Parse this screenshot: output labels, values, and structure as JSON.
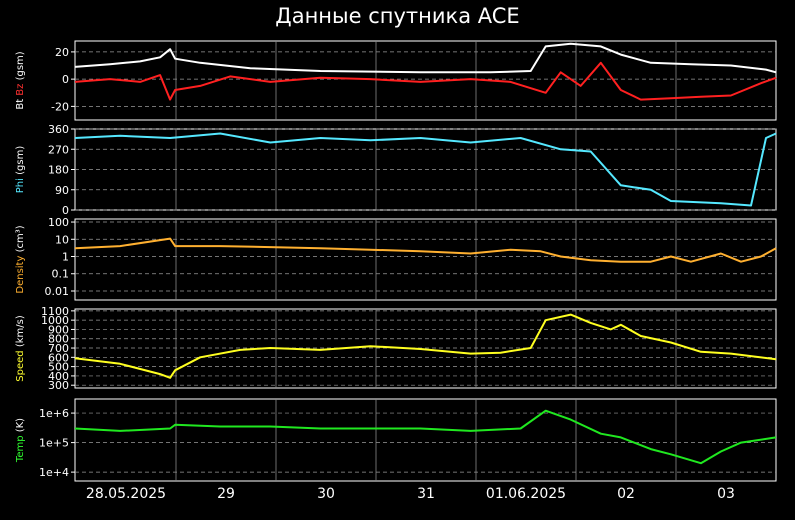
{
  "title": "Данные спутника ACE",
  "chart_data": {
    "type": "line",
    "x_ticks": [
      "28.05.2025",
      "29",
      "30",
      "31",
      "01.06.2025",
      "02",
      "03"
    ],
    "x_range_days": [
      -0.95,
      6.05
    ],
    "grid": true,
    "panels": [
      {
        "id": "mag",
        "ylabel_parts": [
          {
            "text": "Bt ",
            "color": "#ffffff"
          },
          {
            "text": "Bz",
            "color": "#ff3030"
          },
          {
            "text": " (gsm)",
            "color": "#ffffff"
          }
        ],
        "yticks": [
          "20",
          "0",
          "-20"
        ],
        "tick_values": [
          20,
          0,
          -20
        ],
        "ylim": [
          -30,
          28
        ],
        "scale": "linear",
        "series": [
          {
            "name": "Bt",
            "color": "#ffffff",
            "points": [
              [
                -0.95,
                9
              ],
              [
                -0.6,
                11
              ],
              [
                -0.3,
                13
              ],
              [
                -0.1,
                16
              ],
              [
                0.0,
                22
              ],
              [
                0.05,
                15
              ],
              [
                0.3,
                12
              ],
              [
                0.8,
                8
              ],
              [
                1.5,
                6
              ],
              [
                2.5,
                5
              ],
              [
                3.2,
                5
              ],
              [
                3.6,
                6
              ],
              [
                3.75,
                24
              ],
              [
                4.0,
                26
              ],
              [
                4.3,
                24
              ],
              [
                4.5,
                18
              ],
              [
                4.8,
                12
              ],
              [
                5.2,
                11
              ],
              [
                5.6,
                10
              ],
              [
                5.95,
                7
              ],
              [
                6.05,
                5
              ]
            ]
          },
          {
            "name": "Bz",
            "color": "#ff2020",
            "points": [
              [
                -0.95,
                -2
              ],
              [
                -0.6,
                0
              ],
              [
                -0.3,
                -2
              ],
              [
                -0.1,
                3
              ],
              [
                0.0,
                -15
              ],
              [
                0.05,
                -8
              ],
              [
                0.3,
                -5
              ],
              [
                0.6,
                2
              ],
              [
                1.0,
                -2
              ],
              [
                1.5,
                1
              ],
              [
                2.0,
                0
              ],
              [
                2.5,
                -2
              ],
              [
                3.0,
                0
              ],
              [
                3.4,
                -2
              ],
              [
                3.75,
                -10
              ],
              [
                3.9,
                5
              ],
              [
                4.1,
                -5
              ],
              [
                4.3,
                12
              ],
              [
                4.5,
                -8
              ],
              [
                4.7,
                -15
              ],
              [
                5.0,
                -14
              ],
              [
                5.3,
                -13
              ],
              [
                5.6,
                -12
              ],
              [
                5.9,
                -3
              ],
              [
                6.05,
                1
              ]
            ]
          }
        ]
      },
      {
        "id": "phi",
        "ylabel_parts": [
          {
            "text": "Phi",
            "color": "#55e8ff"
          },
          {
            "text": " (gsm)",
            "color": "#ffffff"
          }
        ],
        "yticks": [
          "360",
          "270",
          "180",
          "90",
          "0"
        ],
        "tick_values": [
          360,
          270,
          180,
          90,
          0
        ],
        "ylim": [
          0,
          360
        ],
        "scale": "linear",
        "series": [
          {
            "name": "Phi",
            "color": "#55e8ff",
            "points": [
              [
                -0.95,
                320
              ],
              [
                -0.5,
                330
              ],
              [
                0.0,
                320
              ],
              [
                0.5,
                340
              ],
              [
                1.0,
                300
              ],
              [
                1.5,
                320
              ],
              [
                2.0,
                310
              ],
              [
                2.5,
                320
              ],
              [
                3.0,
                300
              ],
              [
                3.5,
                320
              ],
              [
                3.9,
                270
              ],
              [
                4.2,
                260
              ],
              [
                4.5,
                110
              ],
              [
                4.8,
                90
              ],
              [
                5.0,
                40
              ],
              [
                5.5,
                30
              ],
              [
                5.8,
                20
              ],
              [
                5.95,
                320
              ],
              [
                6.05,
                340
              ]
            ]
          }
        ]
      },
      {
        "id": "density",
        "ylabel_parts": [
          {
            "text": "Density",
            "color": "#ffb030"
          },
          {
            "text": " (cm³)",
            "color": "#ffffff"
          }
        ],
        "yticks": [
          "100",
          "10",
          "1",
          "0.1",
          "0.01"
        ],
        "tick_values": [
          100,
          10,
          1,
          0.1,
          0.01
        ],
        "ylim": [
          0.003,
          150
        ],
        "scale": "log",
        "series": [
          {
            "name": "Density",
            "color": "#ffb030",
            "points": [
              [
                -0.95,
                3
              ],
              [
                -0.5,
                4
              ],
              [
                0.0,
                11
              ],
              [
                0.05,
                4
              ],
              [
                0.5,
                4
              ],
              [
                1.0,
                3.5
              ],
              [
                1.5,
                3
              ],
              [
                2.0,
                2.5
              ],
              [
                2.5,
                2
              ],
              [
                3.0,
                1.5
              ],
              [
                3.4,
                2.5
              ],
              [
                3.7,
                2
              ],
              [
                3.9,
                1
              ],
              [
                4.2,
                0.6
              ],
              [
                4.5,
                0.5
              ],
              [
                4.8,
                0.5
              ],
              [
                5.0,
                1
              ],
              [
                5.2,
                0.5
              ],
              [
                5.5,
                1.5
              ],
              [
                5.7,
                0.5
              ],
              [
                5.9,
                1
              ],
              [
                6.05,
                3
              ]
            ]
          }
        ]
      },
      {
        "id": "speed",
        "ylabel_parts": [
          {
            "text": "Speed",
            "color": "#ffff30"
          },
          {
            "text": " (km/s)",
            "color": "#ffffff"
          }
        ],
        "yticks": [
          "1100",
          "1000",
          "900",
          "800",
          "700",
          "600",
          "500",
          "400",
          "300"
        ],
        "tick_values": [
          1100,
          1000,
          900,
          800,
          700,
          600,
          500,
          400,
          300
        ],
        "ylim": [
          270,
          1120
        ],
        "scale": "linear",
        "series": [
          {
            "name": "Speed",
            "color": "#ffff20",
            "points": [
              [
                -0.95,
                590
              ],
              [
                -0.5,
                530
              ],
              [
                -0.1,
                420
              ],
              [
                0.0,
                380
              ],
              [
                0.05,
                460
              ],
              [
                0.3,
                600
              ],
              [
                0.7,
                680
              ],
              [
                1.0,
                700
              ],
              [
                1.5,
                680
              ],
              [
                2.0,
                720
              ],
              [
                2.5,
                690
              ],
              [
                3.0,
                640
              ],
              [
                3.3,
                650
              ],
              [
                3.6,
                700
              ],
              [
                3.75,
                1000
              ],
              [
                4.0,
                1060
              ],
              [
                4.2,
                970
              ],
              [
                4.4,
                900
              ],
              [
                4.5,
                950
              ],
              [
                4.7,
                830
              ],
              [
                5.0,
                760
              ],
              [
                5.3,
                660
              ],
              [
                5.6,
                640
              ],
              [
                6.05,
                580
              ]
            ]
          }
        ]
      },
      {
        "id": "temp",
        "ylabel_parts": [
          {
            "text": "Temp",
            "color": "#30ff30"
          },
          {
            "text": " (K)",
            "color": "#ffffff"
          }
        ],
        "yticks": [
          "1e+6",
          "1e+5",
          "1e+4"
        ],
        "tick_values": [
          1000000,
          100000,
          10000
        ],
        "ylim": [
          5000,
          3000000
        ],
        "scale": "log",
        "series": [
          {
            "name": "Temp",
            "color": "#20e820",
            "points": [
              [
                -0.95,
                300000
              ],
              [
                -0.5,
                250000
              ],
              [
                0.0,
                300000
              ],
              [
                0.05,
                400000
              ],
              [
                0.5,
                350000
              ],
              [
                1.0,
                350000
              ],
              [
                1.5,
                300000
              ],
              [
                2.0,
                300000
              ],
              [
                2.5,
                300000
              ],
              [
                3.0,
                250000
              ],
              [
                3.5,
                300000
              ],
              [
                3.75,
                1200000
              ],
              [
                4.0,
                600000
              ],
              [
                4.3,
                200000
              ],
              [
                4.5,
                150000
              ],
              [
                4.8,
                60000
              ],
              [
                5.0,
                40000
              ],
              [
                5.3,
                20000
              ],
              [
                5.5,
                50000
              ],
              [
                5.7,
                100000
              ],
              [
                6.05,
                150000
              ]
            ]
          }
        ]
      }
    ]
  }
}
